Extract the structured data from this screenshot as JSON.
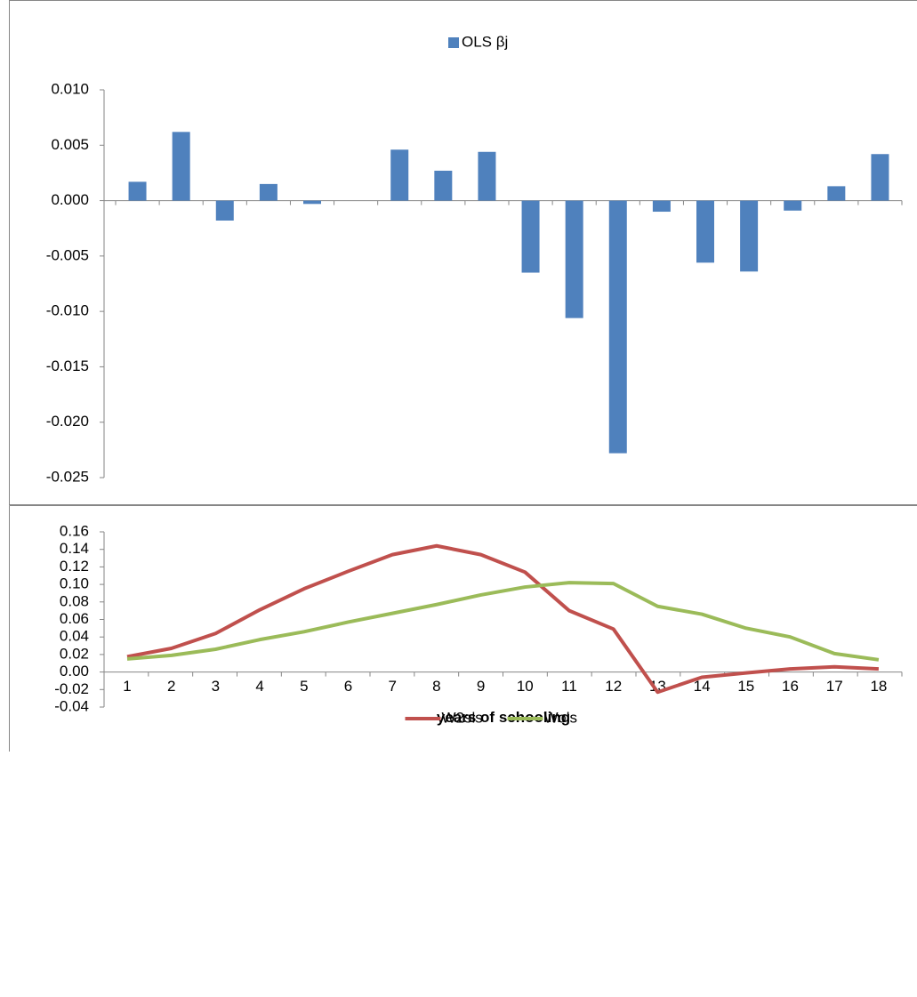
{
  "chart_data": [
    {
      "type": "bar",
      "series": [
        {
          "name": "OLS βj",
          "color": "#4f81bd",
          "values": [
            0.0017,
            0.0062,
            -0.0018,
            0.0015,
            -0.0003,
            0,
            0.0046,
            0.0027,
            0.0044,
            -0.0065,
            -0.0106,
            -0.0228,
            -0.001,
            -0.0056,
            -0.0064,
            -0.0009,
            0.0013,
            0.0042
          ]
        }
      ],
      "ylim": [
        -0.025,
        0.01
      ],
      "yticks": [
        {
          "value": -0.025,
          "label": "-0.025"
        },
        {
          "value": -0.02,
          "label": "-0.020"
        },
        {
          "value": -0.015,
          "label": "-0.015"
        },
        {
          "value": -0.01,
          "label": "-0.010"
        },
        {
          "value": -0.005,
          "label": "-0.005"
        },
        {
          "value": 0,
          "label": "0.000"
        },
        {
          "value": 0.005,
          "label": "0.005"
        },
        {
          "value": 0.01,
          "label": "0.010"
        }
      ],
      "legend": "top"
    },
    {
      "type": "line",
      "xlabel": "years of schooling",
      "categories": [
        "1",
        "2",
        "3",
        "4",
        "5",
        "6",
        "7",
        "8",
        "9",
        "10",
        "11",
        "12",
        "13",
        "14",
        "15",
        "16",
        "17",
        "18"
      ],
      "series": [
        {
          "name": "W2sls",
          "color": "#c0504d",
          "values": [
            0.0175,
            0.027,
            0.044,
            0.071,
            0.095,
            0.115,
            0.134,
            0.144,
            0.134,
            0.114,
            0.07,
            0.049,
            -0.023,
            -0.006,
            -0.001,
            0.0035,
            0.006,
            0.0035
          ]
        },
        {
          "name": "Wols",
          "color": "#9bbb59",
          "values": [
            0.015,
            0.019,
            0.026,
            0.037,
            0.046,
            0.057,
            0.067,
            0.077,
            0.088,
            0.097,
            0.102,
            0.101,
            0.075,
            0.066,
            0.05,
            0.04,
            0.021,
            0.014
          ]
        }
      ],
      "ylim": [
        -0.04,
        0.16
      ],
      "yticks": [
        -0.04,
        -0.02,
        {
          "value": 0,
          "label": "0.00"
        },
        0.02,
        0.04,
        0.06,
        0.08,
        {
          "value": 0.1,
          "label": "0.10"
        },
        0.12,
        0.14,
        0.16
      ],
      "legend": "bottom"
    }
  ]
}
